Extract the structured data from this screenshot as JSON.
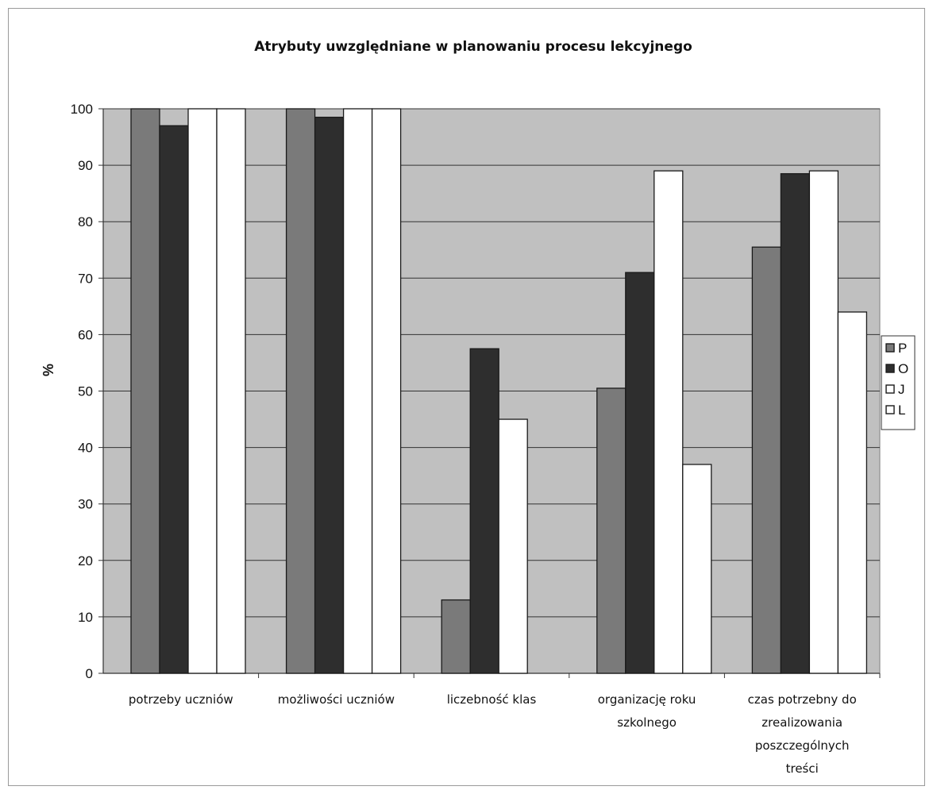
{
  "chart_data": {
    "type": "bar",
    "title": "Atrybuty uwzględniane w planowaniu procesu lekcyjnego",
    "xlabel": "",
    "ylabel": "%",
    "ylim": [
      0,
      100
    ],
    "yticks": [
      0,
      10,
      20,
      30,
      40,
      50,
      60,
      70,
      80,
      90,
      100
    ],
    "grid": true,
    "legend_position": "right",
    "categories": [
      [
        "potrzeby uczniów"
      ],
      [
        "możliwości uczniów"
      ],
      [
        "liczebność klas"
      ],
      [
        "organizację roku",
        "szkolnego"
      ],
      [
        "czas potrzebny do",
        "zrealizowania",
        "poszczególnych",
        "treści"
      ]
    ],
    "series": [
      {
        "name": "P",
        "color": "#7a7a7a",
        "values": [
          100,
          100,
          13,
          50.5,
          75.5
        ]
      },
      {
        "name": "O",
        "color": "#2e2e2e",
        "values": [
          97,
          98.5,
          57.5,
          71,
          88.5
        ]
      },
      {
        "name": "J",
        "color": "#ffffff",
        "values": [
          100,
          100,
          45,
          89,
          89
        ]
      },
      {
        "name": "L",
        "color": "#ffffff",
        "values": [
          100,
          100,
          0,
          37,
          64
        ]
      }
    ],
    "plot_background": "#c0c0c0"
  }
}
